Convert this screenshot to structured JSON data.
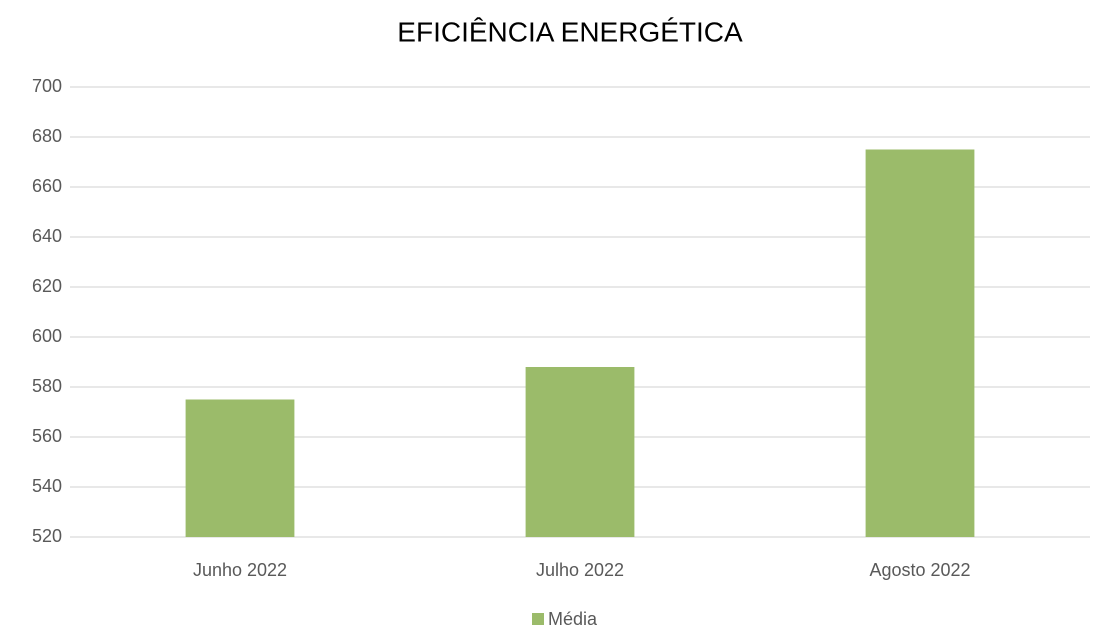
{
  "chart_data": {
    "type": "bar",
    "title": "EFICIÊNCIA ENERGÉTICA",
    "categories": [
      "Junho 2022",
      "Julho 2022",
      "Agosto 2022"
    ],
    "series": [
      {
        "name": "Média",
        "color": "#9bbb6a",
        "values": [
          575,
          588,
          675
        ]
      }
    ],
    "ylim": [
      520,
      700
    ],
    "yticks": [
      520,
      540,
      560,
      580,
      600,
      620,
      640,
      660,
      680,
      700
    ],
    "grid": true,
    "legend": "bottom"
  }
}
